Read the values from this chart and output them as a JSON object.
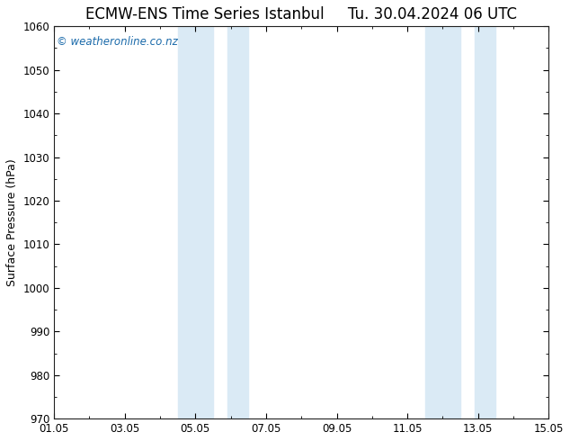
{
  "title_left": "ECMW-ENS Time Series Istanbul",
  "title_right": "Tu. 30.04.2024 06 UTC",
  "ylabel": "Surface Pressure (hPa)",
  "ylim": [
    970,
    1060
  ],
  "yticks": [
    970,
    980,
    990,
    1000,
    1010,
    1020,
    1030,
    1040,
    1050,
    1060
  ],
  "xlim_start": 0,
  "xlim_end": 14,
  "xtick_labels": [
    "01.05",
    "03.05",
    "05.05",
    "07.05",
    "09.05",
    "11.05",
    "13.05",
    "15.05"
  ],
  "xtick_positions": [
    0,
    2,
    4,
    6,
    8,
    10,
    12,
    14
  ],
  "shaded_bands": [
    {
      "xmin": 3.5,
      "xmax": 4.5
    },
    {
      "xmin": 5.0,
      "xmax": 5.5
    },
    {
      "xmin": 10.5,
      "xmax": 11.5
    },
    {
      "xmin": 12.0,
      "xmax": 12.5
    }
  ],
  "band_color": "#daeaf5",
  "background_color": "#ffffff",
  "plot_bg_color": "#ffffff",
  "grid_color": "#cccccc",
  "watermark_text": "© weatheronline.co.nz",
  "watermark_color": "#1a6aaa",
  "title_fontsize": 12,
  "label_fontsize": 9,
  "tick_fontsize": 8.5,
  "watermark_fontsize": 8.5
}
